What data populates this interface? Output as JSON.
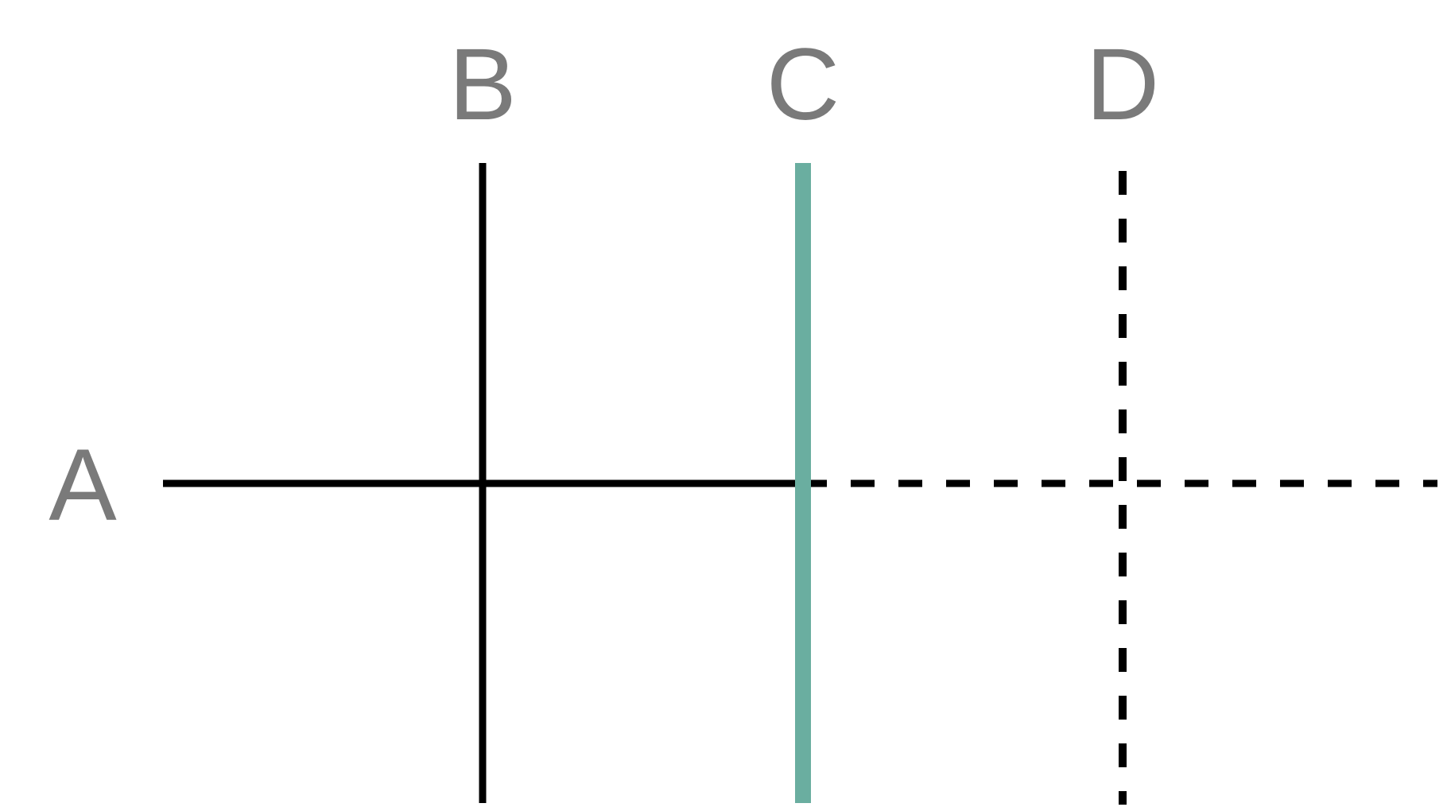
{
  "diagram": {
    "labels": {
      "a": "A",
      "b": "B",
      "c": "C",
      "d": "D"
    },
    "colors": {
      "label": "#7a7a7a",
      "line": "#000000",
      "highlight": "#6aaea0",
      "background": "#ffffff"
    },
    "lines": [
      {
        "id": "A",
        "orientation": "horizontal",
        "style": "solid-then-dashed"
      },
      {
        "id": "B",
        "orientation": "vertical",
        "style": "solid"
      },
      {
        "id": "C",
        "orientation": "vertical",
        "style": "solid",
        "highlighted": true
      },
      {
        "id": "D",
        "orientation": "vertical",
        "style": "dashed"
      }
    ]
  }
}
